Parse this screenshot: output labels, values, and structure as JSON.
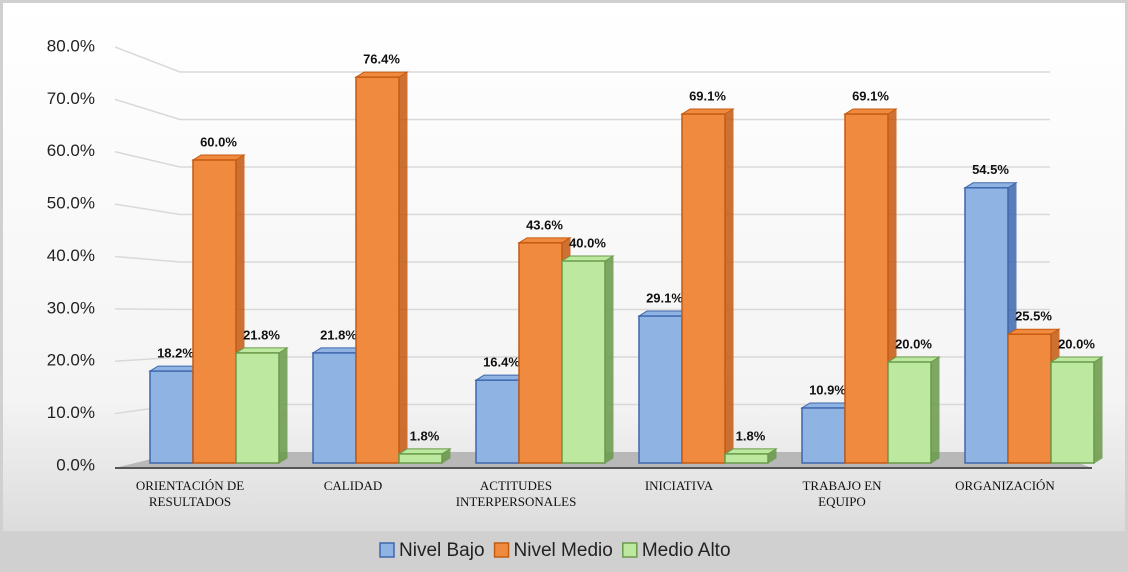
{
  "chart_data": {
    "type": "bar3d",
    "categories": [
      [
        "ORIENTACIÓN DE",
        "RESULTADOS"
      ],
      [
        "CALIDAD"
      ],
      [
        "ACTITUDES",
        "INTERPERSONALES"
      ],
      [
        "INICIATIVA"
      ],
      [
        "TRABAJO EN",
        "EQUIPO"
      ],
      [
        "ORGANIZACIÓN"
      ]
    ],
    "series": [
      {
        "name": "Nivel Bajo",
        "color": "#8fb4e3",
        "edge": "#3f67ad",
        "values": [
          18.2,
          21.8,
          16.4,
          29.1,
          10.9,
          54.5
        ],
        "value_labels": [
          "18.2%",
          "21.8%",
          "16.4%",
          "29.1%",
          "10.9%",
          "54.5%"
        ]
      },
      {
        "name": "Nivel Medio",
        "color": "#f08a3f",
        "edge": "#c55a11",
        "values": [
          60.0,
          76.4,
          43.6,
          69.1,
          69.1,
          25.5
        ],
        "value_labels": [
          "60.0%",
          "76.4%",
          "43.6%",
          "69.1%",
          "69.1%",
          "25.5%"
        ]
      },
      {
        "name": "Medio Alto",
        "color": "#bde8a0",
        "edge": "#6a9a4a",
        "values": [
          21.8,
          1.8,
          40.0,
          1.8,
          20.0,
          20.0
        ],
        "value_labels": [
          "21.8%",
          "1.8%",
          "40.0%",
          "1.8%",
          "20.0%",
          "20.0%"
        ]
      }
    ],
    "ylim": [
      0,
      80
    ],
    "yticks": [
      {
        "value": 0,
        "label": "0.0%"
      },
      {
        "value": 10,
        "label": "10.0%"
      },
      {
        "value": 20,
        "label": "20.0%"
      },
      {
        "value": 30,
        "label": "30.0%"
      },
      {
        "value": 40,
        "label": "40.0%"
      },
      {
        "value": 50,
        "label": "50.0%"
      },
      {
        "value": 60,
        "label": "60.0%"
      },
      {
        "value": 70,
        "label": "70.0%"
      },
      {
        "value": 80,
        "label": "80.0%"
      }
    ],
    "grid": true
  }
}
